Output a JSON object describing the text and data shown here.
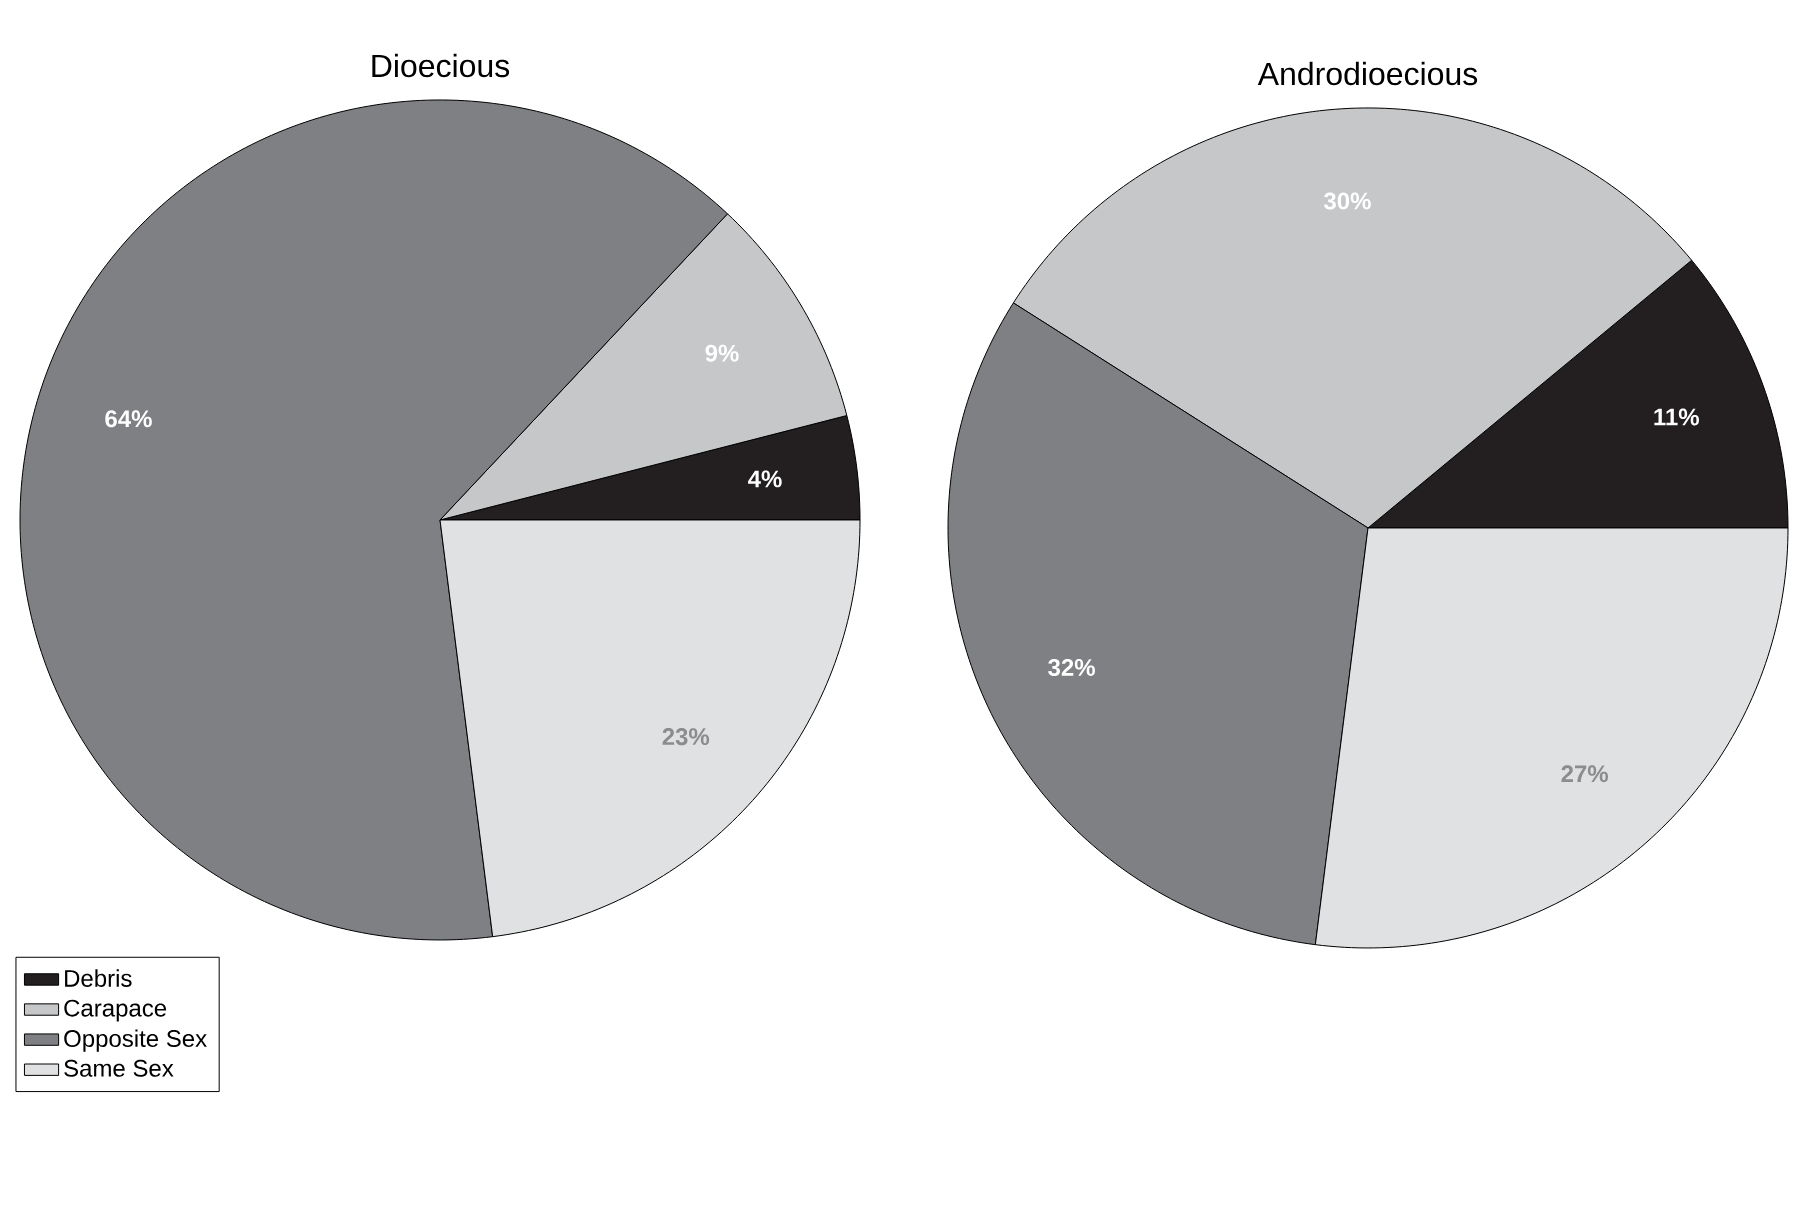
{
  "chart_data": [
    {
      "type": "pie",
      "title": "Dioecious",
      "categories": [
        "Debris",
        "Carapace",
        "Opposite Sex",
        "Same Sex"
      ],
      "values": [
        4,
        9,
        64,
        23
      ],
      "colors": [
        "#231f20",
        "#c6c7c9",
        "#7f8083",
        "#e0e1e2"
      ],
      "value_labels": [
        "4%",
        "9%",
        "64%",
        "23%"
      ],
      "legend": "bottom left"
    },
    {
      "type": "pie",
      "title": "Androdioecious",
      "categories": [
        null,
        null,
        null,
        null
      ],
      "values": [
        11,
        30,
        32,
        27
      ],
      "colors": [
        "#231f20",
        "#c6c7c9",
        "#7f8083",
        "#e0e1e2"
      ],
      "value_labels": [
        "11%",
        "30%",
        "32%",
        "27%"
      ],
      "legend": false
    }
  ]
}
